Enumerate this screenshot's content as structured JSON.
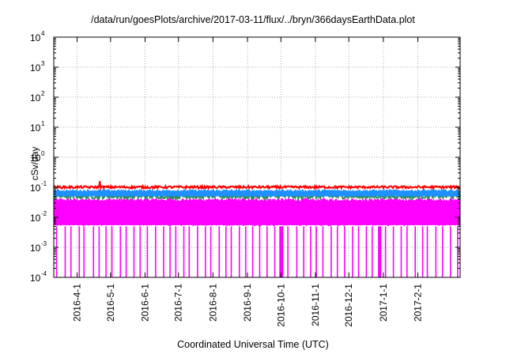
{
  "chart_data": {
    "type": "line",
    "title": "/data/run/goesPlots/archive/2017-03-11/flux/../bryn/366daysEarthData.plot",
    "xlabel": "Coordinated Universal Time (UTC)",
    "ylabel": "cSv/day",
    "y_scale": "log",
    "ylim": [
      0.0001,
      10000
    ],
    "xlim": [
      "2016-03-11",
      "2017-03-11"
    ],
    "grid": true,
    "y_ticks": [
      {
        "value": 0.0001,
        "base": "10",
        "exp": "-4"
      },
      {
        "value": 0.001,
        "base": "10",
        "exp": "-3"
      },
      {
        "value": 0.01,
        "base": "10",
        "exp": "-2"
      },
      {
        "value": 0.1,
        "base": "10",
        "exp": "-1"
      },
      {
        "value": 1,
        "base": "10",
        "exp": "0"
      },
      {
        "value": 10,
        "base": "10",
        "exp": "1"
      },
      {
        "value": 100,
        "base": "10",
        "exp": "2"
      },
      {
        "value": 1000,
        "base": "10",
        "exp": "3"
      },
      {
        "value": 10000,
        "base": "10",
        "exp": "4"
      }
    ],
    "x_ticks": [
      "2016-4-1",
      "2016-5-1",
      "2016-6-1",
      "2016-7-1",
      "2016-8-1",
      "2016-9-1",
      "2016-10-1",
      "2016-11-1",
      "2016-12-1",
      "2017-1-1",
      "2017-2-1"
    ],
    "series": [
      {
        "color": "#ff0000",
        "typical": 0.1,
        "min": 0.085,
        "max": 0.16
      },
      {
        "color": "#1e90ff",
        "typical": 0.07,
        "min": 0.05,
        "max": 0.09
      },
      {
        "color": "#2e8b57",
        "typical": 0.05,
        "min": 0.04,
        "max": 0.06
      },
      {
        "color": "#ff00ff",
        "typical": 0.03,
        "min": 0.0001,
        "max": 0.05
      }
    ]
  }
}
